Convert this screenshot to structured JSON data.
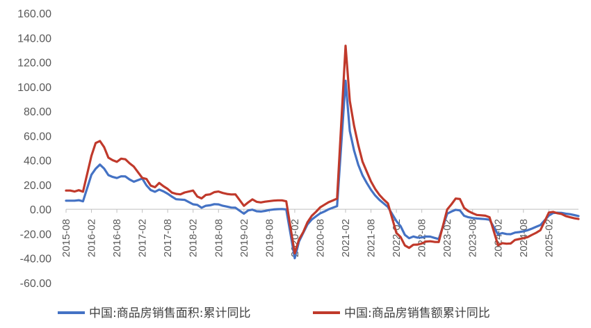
{
  "chart_data": {
    "type": "line",
    "title": "",
    "xlabel": "",
    "ylabel": "",
    "ylim": [
      -60,
      160
    ],
    "yticks": [
      -60,
      -40,
      -20,
      0,
      20,
      40,
      60,
      80,
      100,
      120,
      140,
      160
    ],
    "ytick_labels": [
      "-60.00",
      "-40.00",
      "-20.00",
      "0.00",
      "20.00",
      "40.00",
      "60.00",
      "80.00",
      "100.00",
      "120.00",
      "140.00",
      "160.00"
    ],
    "xticks": [
      "2015-08",
      "2016-02",
      "2016-08",
      "2017-02",
      "2017-08",
      "2018-02",
      "2018-08",
      "2019-02",
      "2019-08",
      "2020-02",
      "2020-08",
      "2021-02",
      "2021-08",
      "2022-02",
      "2022-08",
      "2023-02",
      "2023-08",
      "2024-02",
      "2024-08",
      "2025-02"
    ],
    "grid": false,
    "legend_position": "bottom",
    "series": [
      {
        "name": "中国:商品房销售面积:累计同比",
        "color": "#4472c4",
        "points": [
          [
            "2015-08",
            7
          ],
          [
            "2015-09",
            7
          ],
          [
            "2015-10",
            7
          ],
          [
            "2015-11",
            7.4
          ],
          [
            "2015-12",
            6.5
          ],
          [
            "2016-02",
            28.2
          ],
          [
            "2016-03",
            33.1
          ],
          [
            "2016-04",
            36.5
          ],
          [
            "2016-05",
            33.2
          ],
          [
            "2016-06",
            27.9
          ],
          [
            "2016-07",
            26.4
          ],
          [
            "2016-08",
            25.5
          ],
          [
            "2016-09",
            26.9
          ],
          [
            "2016-10",
            26.8
          ],
          [
            "2016-11",
            24.3
          ],
          [
            "2016-12",
            22.5
          ],
          [
            "2017-02",
            25.1
          ],
          [
            "2017-03",
            19.5
          ],
          [
            "2017-04",
            15.7
          ],
          [
            "2017-05",
            14.3
          ],
          [
            "2017-06",
            16.1
          ],
          [
            "2017-07",
            14.6
          ],
          [
            "2017-08",
            12.7
          ],
          [
            "2017-09",
            10.3
          ],
          [
            "2017-10",
            8.2
          ],
          [
            "2017-11",
            7.9
          ],
          [
            "2017-12",
            7.7
          ],
          [
            "2018-02",
            4.1
          ],
          [
            "2018-03",
            3.6
          ],
          [
            "2018-04",
            1.3
          ],
          [
            "2018-05",
            2.9
          ],
          [
            "2018-06",
            3.3
          ],
          [
            "2018-07",
            4.2
          ],
          [
            "2018-08",
            4
          ],
          [
            "2018-09",
            2.9
          ],
          [
            "2018-10",
            2.2
          ],
          [
            "2018-11",
            1.4
          ],
          [
            "2018-12",
            1.3
          ],
          [
            "2019-02",
            -3.6
          ],
          [
            "2019-03",
            -0.9
          ],
          [
            "2019-04",
            -0.3
          ],
          [
            "2019-05",
            -1.6
          ],
          [
            "2019-06",
            -1.8
          ],
          [
            "2019-07",
            -1.3
          ],
          [
            "2019-08",
            -0.6
          ],
          [
            "2019-09",
            -0.1
          ],
          [
            "2019-10",
            0.1
          ],
          [
            "2019-11",
            0.2
          ],
          [
            "2019-12",
            -0.1
          ],
          [
            "2020-02",
            -39.9
          ],
          [
            "2020-03",
            -26.3
          ],
          [
            "2020-04",
            -19.3
          ],
          [
            "2020-05",
            -12.3
          ],
          [
            "2020-06",
            -8.4
          ],
          [
            "2020-07",
            -5.8
          ],
          [
            "2020-08",
            -3.3
          ],
          [
            "2020-09",
            -1.8
          ],
          [
            "2020-10",
            0
          ],
          [
            "2020-11",
            1.3
          ],
          [
            "2020-12",
            2.6
          ],
          [
            "2021-02",
            104.9
          ],
          [
            "2021-03",
            63.8
          ],
          [
            "2021-04",
            48.1
          ],
          [
            "2021-05",
            36.3
          ],
          [
            "2021-06",
            27.7
          ],
          [
            "2021-07",
            21.5
          ],
          [
            "2021-08",
            15.9
          ],
          [
            "2021-09",
            11.3
          ],
          [
            "2021-10",
            7.7
          ],
          [
            "2021-11",
            4.8
          ],
          [
            "2021-12",
            1.9
          ],
          [
            "2022-02",
            -9.6
          ],
          [
            "2022-03",
            -13.8
          ],
          [
            "2022-04",
            -20.9
          ],
          [
            "2022-05",
            -23.6
          ],
          [
            "2022-06",
            -22.2
          ],
          [
            "2022-07",
            -23.1
          ],
          [
            "2022-08",
            -23
          ],
          [
            "2022-09",
            -22.2
          ],
          [
            "2022-10",
            -22.3
          ],
          [
            "2022-11",
            -23.3
          ],
          [
            "2022-12",
            -24.3
          ],
          [
            "2023-02",
            -3.6
          ],
          [
            "2023-03",
            -1.8
          ],
          [
            "2023-04",
            -0.4
          ],
          [
            "2023-05",
            -0.9
          ],
          [
            "2023-06",
            -5.3
          ],
          [
            "2023-07",
            -6.5
          ],
          [
            "2023-08",
            -7.1
          ],
          [
            "2023-09",
            -7.5
          ],
          [
            "2023-10",
            -7.8
          ],
          [
            "2023-11",
            -8
          ],
          [
            "2023-12",
            -8.5
          ],
          [
            "2024-02",
            -20.5
          ],
          [
            "2024-03",
            -19.4
          ],
          [
            "2024-04",
            -20.2
          ],
          [
            "2024-05",
            -20.3
          ],
          [
            "2024-06",
            -19
          ],
          [
            "2024-07",
            -18.6
          ],
          [
            "2024-08",
            -18
          ],
          [
            "2024-09",
            -17.1
          ],
          [
            "2024-10",
            -15.8
          ],
          [
            "2024-11",
            -14.3
          ],
          [
            "2024-12",
            -12.9
          ],
          [
            "2025-02",
            -5.1
          ],
          [
            "2025-03",
            -3
          ],
          [
            "2025-04",
            -2.8
          ],
          [
            "2025-05",
            -2.9
          ],
          [
            "2025-06",
            -3.5
          ],
          [
            "2025-07",
            -4
          ],
          [
            "2025-08",
            -4.7
          ],
          [
            "2025-09",
            -5.5
          ]
        ]
      },
      {
        "name": "中国:商品房销售额累计同比",
        "color": "#c0392b",
        "points": [
          [
            "2015-08",
            15.3
          ],
          [
            "2015-09",
            15.3
          ],
          [
            "2015-10",
            14.5
          ],
          [
            "2015-11",
            15.6
          ],
          [
            "2015-12",
            14.4
          ],
          [
            "2016-02",
            43.6
          ],
          [
            "2016-03",
            54.1
          ],
          [
            "2016-04",
            55.7
          ],
          [
            "2016-05",
            50.7
          ],
          [
            "2016-06",
            42.1
          ],
          [
            "2016-07",
            40.1
          ],
          [
            "2016-08",
            38.7
          ],
          [
            "2016-09",
            41.3
          ],
          [
            "2016-10",
            40.8
          ],
          [
            "2016-11",
            37.5
          ],
          [
            "2016-12",
            34.8
          ],
          [
            "2017-02",
            25.6
          ],
          [
            "2017-03",
            24.7
          ],
          [
            "2017-04",
            19.3
          ],
          [
            "2017-05",
            18
          ],
          [
            "2017-06",
            21.5
          ],
          [
            "2017-07",
            18.8
          ],
          [
            "2017-08",
            16.6
          ],
          [
            "2017-09",
            13.6
          ],
          [
            "2017-10",
            12.6
          ],
          [
            "2017-11",
            12.2
          ],
          [
            "2017-12",
            13.7
          ],
          [
            "2018-02",
            15.3
          ],
          [
            "2018-03",
            10.4
          ],
          [
            "2018-04",
            8.9
          ],
          [
            "2018-05",
            11.7
          ],
          [
            "2018-06",
            12.2
          ],
          [
            "2018-07",
            14
          ],
          [
            "2018-08",
            14.5
          ],
          [
            "2018-09",
            13.3
          ],
          [
            "2018-10",
            12.5
          ],
          [
            "2018-11",
            12.1
          ],
          [
            "2018-12",
            12.2
          ],
          [
            "2019-02",
            2.8
          ],
          [
            "2019-03",
            5.6
          ],
          [
            "2019-04",
            8.1
          ],
          [
            "2019-05",
            6.1
          ],
          [
            "2019-06",
            5.6
          ],
          [
            "2019-07",
            6.2
          ],
          [
            "2019-08",
            6.7
          ],
          [
            "2019-09",
            7.1
          ],
          [
            "2019-10",
            7.3
          ],
          [
            "2019-11",
            7.3
          ],
          [
            "2019-12",
            6.5
          ],
          [
            "2020-02",
            -35.9
          ],
          [
            "2020-03",
            -24.7
          ],
          [
            "2020-04",
            -18.6
          ],
          [
            "2020-05",
            -10.6
          ],
          [
            "2020-06",
            -5.4
          ],
          [
            "2020-07",
            -2.1
          ],
          [
            "2020-08",
            1.6
          ],
          [
            "2020-09",
            3.7
          ],
          [
            "2020-10",
            5.8
          ],
          [
            "2020-11",
            7.2
          ],
          [
            "2020-12",
            8.7
          ],
          [
            "2021-02",
            133.4
          ],
          [
            "2021-03",
            88.5
          ],
          [
            "2021-04",
            68.2
          ],
          [
            "2021-05",
            52.4
          ],
          [
            "2021-06",
            38.9
          ],
          [
            "2021-07",
            30.7
          ],
          [
            "2021-08",
            22.8
          ],
          [
            "2021-09",
            16.6
          ],
          [
            "2021-10",
            11.8
          ],
          [
            "2021-11",
            8
          ],
          [
            "2021-12",
            4.8
          ],
          [
            "2022-02",
            -19.3
          ],
          [
            "2022-03",
            -22.7
          ],
          [
            "2022-04",
            -29.5
          ],
          [
            "2022-05",
            -31.5
          ],
          [
            "2022-06",
            -28.9
          ],
          [
            "2022-07",
            -28.8
          ],
          [
            "2022-08",
            -27.9
          ],
          [
            "2022-09",
            -26.3
          ],
          [
            "2022-10",
            -26.1
          ],
          [
            "2022-11",
            -26.6
          ],
          [
            "2022-12",
            -26.7
          ],
          [
            "2023-02",
            -0.1
          ],
          [
            "2023-03",
            4.1
          ],
          [
            "2023-04",
            8.8
          ],
          [
            "2023-05",
            8.4
          ],
          [
            "2023-06",
            1.1
          ],
          [
            "2023-07",
            -1.5
          ],
          [
            "2023-08",
            -3.2
          ],
          [
            "2023-09",
            -4.6
          ],
          [
            "2023-10",
            -4.9
          ],
          [
            "2023-11",
            -5.2
          ],
          [
            "2023-12",
            -6.5
          ],
          [
            "2024-02",
            -29.3
          ],
          [
            "2024-03",
            -27.6
          ],
          [
            "2024-04",
            -28.1
          ],
          [
            "2024-05",
            -27.9
          ],
          [
            "2024-06",
            -25
          ],
          [
            "2024-07",
            -24.3
          ],
          [
            "2024-08",
            -23.6
          ],
          [
            "2024-09",
            -22.7
          ],
          [
            "2024-10",
            -20.9
          ],
          [
            "2024-11",
            -19.2
          ],
          [
            "2024-12",
            -17.1
          ],
          [
            "2025-02",
            -2.6
          ],
          [
            "2025-03",
            -2.1
          ],
          [
            "2025-04",
            -3.2
          ],
          [
            "2025-05",
            -3.8
          ],
          [
            "2025-06",
            -5.5
          ],
          [
            "2025-07",
            -6.5
          ],
          [
            "2025-08",
            -7.3
          ],
          [
            "2025-09",
            -7.9
          ]
        ]
      }
    ]
  }
}
